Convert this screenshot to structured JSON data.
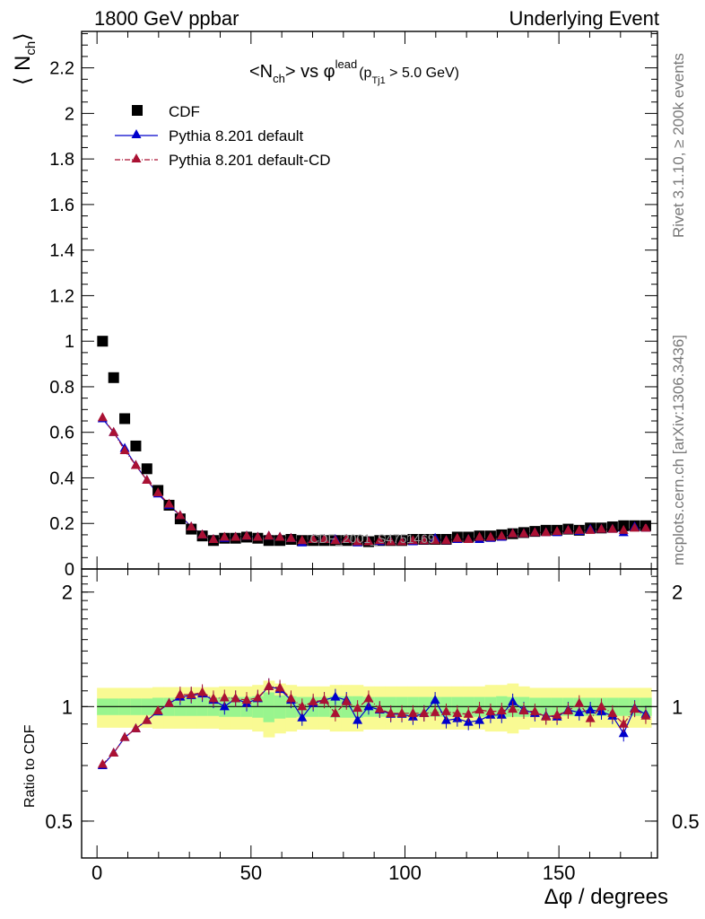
{
  "header": {
    "left": "1800 GeV ppbar",
    "right": "Underlying Event"
  },
  "side_labels": {
    "rivet": "Rivet 3.1.10, ≥ 200k events",
    "mcplots": "mcplots.cern.ch [arXiv:1306.3436]"
  },
  "plot_title": {
    "lhs": "<N",
    "lhs_sub": "ch",
    "mid": "> vs φ",
    "sup": "lead",
    "paren_open": "(p",
    "paren_sub": "Tj1",
    "paren_close": " > 5.0 GeV)"
  },
  "ylabel": {
    "main": "⟨ N",
    "sub": "ch",
    "close": "⟩"
  },
  "watermark": "CDF_2001_S4751469",
  "ratio_ylabel": "Ratio to CDF",
  "xlabel": "Δφ / degrees",
  "colors": {
    "data": "#000000",
    "default": "#0000cc",
    "cd": "#aa1133",
    "band_inner": "#99f58e",
    "band_outer": "#f9fa93"
  },
  "chart_data": [
    {
      "type": "scatter",
      "panel": "main",
      "xlim": [
        -5,
        182
      ],
      "ylim": [
        0,
        2.36
      ],
      "y_ticks": [
        "0",
        "0.2",
        "0.4",
        "0.6",
        "0.8",
        "1",
        "1.2",
        "1.4",
        "1.6",
        "1.8",
        "2",
        "2.2"
      ],
      "x": [
        1.8,
        5.4,
        9.0,
        12.6,
        16.2,
        19.8,
        23.4,
        27.0,
        30.6,
        34.2,
        37.8,
        41.4,
        45.0,
        48.6,
        52.2,
        55.8,
        59.4,
        63.0,
        66.6,
        70.2,
        73.8,
        77.4,
        81.0,
        84.6,
        88.2,
        91.8,
        95.4,
        99.0,
        102.6,
        106.2,
        109.8,
        113.4,
        117.0,
        120.6,
        124.2,
        127.8,
        131.4,
        135.0,
        138.6,
        142.2,
        145.8,
        149.4,
        153.0,
        156.6,
        160.2,
        163.8,
        167.4,
        171.0,
        174.6,
        178.2
      ],
      "legend": [
        {
          "label": "CDF",
          "marker": "square"
        },
        {
          "label": "Pythia 8.201 default",
          "marker": "triangle"
        },
        {
          "label": "Pythia 8.201 default-CD",
          "marker": "triangle"
        }
      ],
      "series": [
        {
          "name": "CDF",
          "values": [
            1.0,
            0.84,
            0.66,
            0.54,
            0.44,
            0.345,
            0.28,
            0.22,
            0.175,
            0.145,
            0.125,
            0.135,
            0.135,
            0.14,
            0.135,
            0.125,
            0.125,
            0.13,
            0.125,
            0.125,
            0.125,
            0.125,
            0.125,
            0.125,
            0.12,
            0.125,
            0.125,
            0.125,
            0.13,
            0.13,
            0.13,
            0.13,
            0.14,
            0.14,
            0.145,
            0.145,
            0.15,
            0.155,
            0.16,
            0.165,
            0.17,
            0.17,
            0.175,
            0.17,
            0.18,
            0.18,
            0.185,
            0.19,
            0.19,
            0.19
          ]
        },
        {
          "name": "Pythia 8.201 default",
          "values": [
            0.66,
            0.6,
            0.53,
            0.455,
            0.39,
            0.33,
            0.28,
            0.235,
            0.185,
            0.15,
            0.13,
            0.135,
            0.14,
            0.145,
            0.14,
            0.145,
            0.14,
            0.135,
            0.115,
            0.13,
            0.13,
            0.13,
            0.13,
            0.115,
            0.12,
            0.12,
            0.12,
            0.12,
            0.12,
            0.125,
            0.135,
            0.125,
            0.13,
            0.13,
            0.13,
            0.135,
            0.14,
            0.155,
            0.155,
            0.16,
            0.16,
            0.16,
            0.17,
            0.165,
            0.175,
            0.175,
            0.175,
            0.16,
            0.185,
            0.18
          ]
        },
        {
          "name": "Pythia 8.201 default-CD",
          "values": [
            0.665,
            0.6,
            0.52,
            0.455,
            0.39,
            0.335,
            0.285,
            0.235,
            0.185,
            0.15,
            0.13,
            0.14,
            0.14,
            0.145,
            0.14,
            0.145,
            0.14,
            0.135,
            0.125,
            0.13,
            0.13,
            0.125,
            0.13,
            0.12,
            0.12,
            0.125,
            0.12,
            0.12,
            0.125,
            0.125,
            0.125,
            0.125,
            0.135,
            0.13,
            0.14,
            0.14,
            0.145,
            0.155,
            0.155,
            0.16,
            0.16,
            0.165,
            0.17,
            0.17,
            0.17,
            0.175,
            0.175,
            0.17,
            0.18,
            0.18
          ]
        }
      ]
    },
    {
      "type": "scatter",
      "panel": "ratio",
      "xlim": [
        -5,
        182
      ],
      "ylim": [
        0.4,
        2.3
      ],
      "y_scale": "log",
      "y_ticks": [
        "0.5",
        "1",
        "2"
      ],
      "x_ticks": [
        "0",
        "50",
        "100",
        "150"
      ],
      "reference": 1.0,
      "band_inner_halfwidth": [
        0.05,
        0.05,
        0.05,
        0.05,
        0.05,
        0.055,
        0.055,
        0.055,
        0.055,
        0.055,
        0.055,
        0.06,
        0.06,
        0.06,
        0.065,
        0.09,
        0.07,
        0.065,
        0.06,
        0.06,
        0.06,
        0.065,
        0.065,
        0.065,
        0.06,
        0.06,
        0.06,
        0.06,
        0.06,
        0.06,
        0.06,
        0.06,
        0.06,
        0.06,
        0.06,
        0.06,
        0.065,
        0.06,
        0.06,
        0.055,
        0.055,
        0.055,
        0.055,
        0.055,
        0.055,
        0.055,
        0.055,
        0.055,
        0.055,
        0.055
      ],
      "band_outer_halfwidth": [
        0.12,
        0.12,
        0.12,
        0.12,
        0.12,
        0.125,
        0.125,
        0.125,
        0.125,
        0.125,
        0.125,
        0.13,
        0.13,
        0.13,
        0.14,
        0.17,
        0.15,
        0.14,
        0.13,
        0.13,
        0.13,
        0.14,
        0.14,
        0.14,
        0.13,
        0.13,
        0.13,
        0.13,
        0.13,
        0.13,
        0.13,
        0.13,
        0.13,
        0.13,
        0.13,
        0.14,
        0.14,
        0.15,
        0.13,
        0.12,
        0.12,
        0.12,
        0.12,
        0.12,
        0.12,
        0.12,
        0.12,
        0.12,
        0.12,
        0.12
      ],
      "series": [
        {
          "name": "Pythia 8.201 default",
          "values": [
            0.7,
            0.755,
            0.83,
            0.875,
            0.92,
            0.97,
            1.02,
            1.06,
            1.07,
            1.08,
            1.04,
            1.0,
            1.05,
            1.02,
            1.05,
            1.13,
            1.11,
            1.04,
            0.935,
            1.02,
            1.04,
            1.06,
            1.04,
            0.92,
            1.0,
            0.98,
            0.955,
            0.955,
            0.94,
            0.96,
            1.04,
            0.92,
            0.93,
            0.91,
            0.92,
            0.95,
            0.95,
            1.03,
            0.98,
            0.96,
            0.945,
            0.94,
            0.98,
            0.965,
            0.98,
            0.97,
            0.945,
            0.85,
            0.99,
            0.955
          ]
        },
        {
          "name": "Pythia 8.201 default-CD",
          "values": [
            0.705,
            0.755,
            0.83,
            0.875,
            0.92,
            0.975,
            1.02,
            1.075,
            1.075,
            1.09,
            1.05,
            1.055,
            1.05,
            1.04,
            1.055,
            1.13,
            1.12,
            1.05,
            1.0,
            1.03,
            1.04,
            0.96,
            1.03,
            0.99,
            1.05,
            0.985,
            0.96,
            0.96,
            0.96,
            0.96,
            0.965,
            0.97,
            0.96,
            0.955,
            0.98,
            0.97,
            0.975,
            0.985,
            0.975,
            0.97,
            0.94,
            0.95,
            0.975,
            1.02,
            0.93,
            1.0,
            0.96,
            0.9,
            0.985,
            0.945
          ]
        }
      ]
    }
  ]
}
